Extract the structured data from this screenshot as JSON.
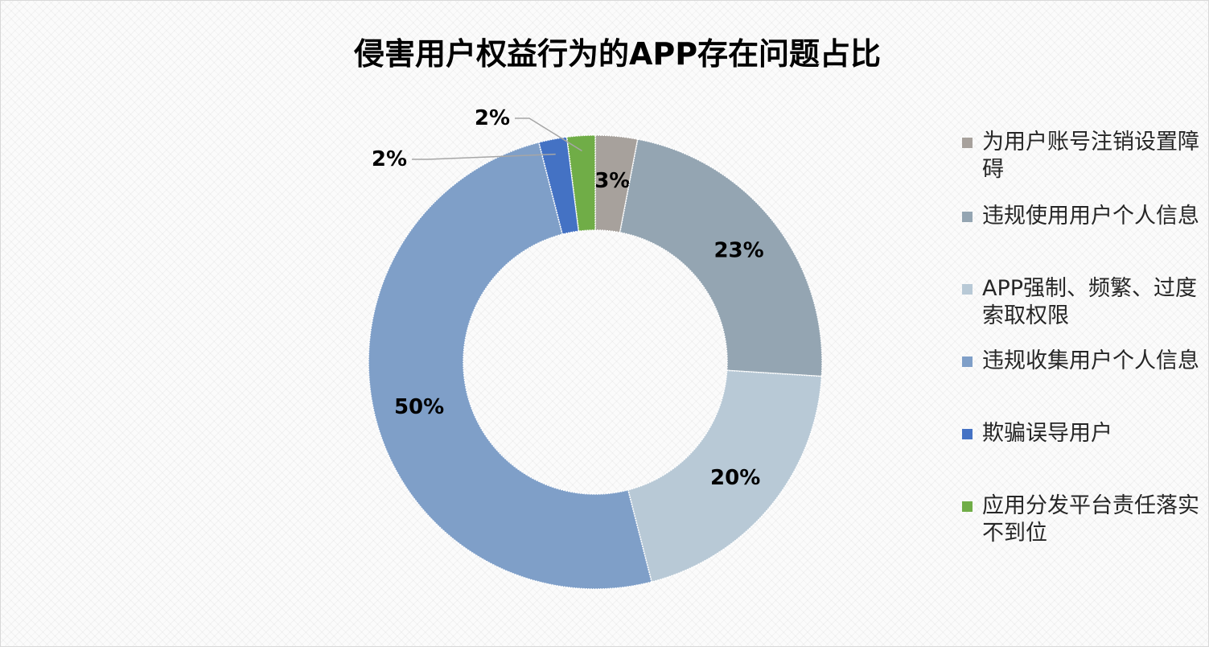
{
  "chart_data": {
    "type": "pie",
    "title": "侵害用户权益行为的APP存在问题占比",
    "categories": [
      "为用户账号注销设置障碍",
      "违规使用用户个人信息",
      "APP强制、频繁、过度索取权限",
      "违规收集用户个人信息",
      "欺骗误导用户",
      "应用分发平台责任落实不到位"
    ],
    "values": [
      3,
      23,
      20,
      50,
      2,
      2
    ],
    "data_labels": [
      "3%",
      "23%",
      "20%",
      "50%",
      "2%",
      "2%"
    ],
    "colors": [
      "#a7a19c",
      "#94a5b2",
      "#b8c9d6",
      "#7f9fc8",
      "#4472c4",
      "#70ad47"
    ],
    "legend_position": "right",
    "donut": true
  }
}
